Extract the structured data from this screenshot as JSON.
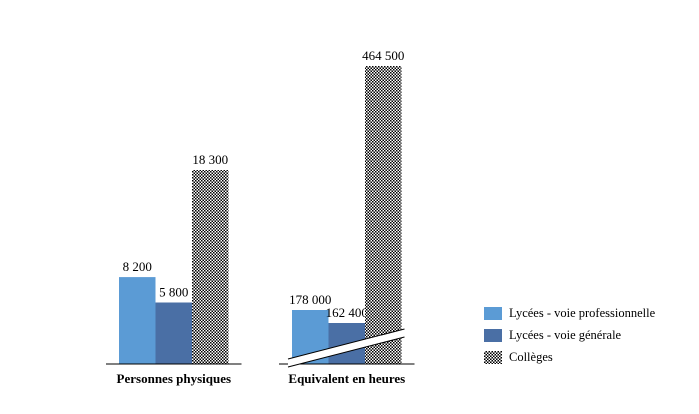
{
  "chart_data": {
    "type": "bar",
    "categories": [
      "Personnes physiques",
      "Equivalent en heures"
    ],
    "series": [
      {
        "name": "Lycées - voie professionnelle",
        "values": [
          8200,
          178000
        ],
        "labels": [
          "8 200",
          "178 000"
        ],
        "color": "#5b9bd5",
        "pattern": "solid"
      },
      {
        "name": "Lycées - voie générale",
        "values": [
          5800,
          162400
        ],
        "labels": [
          "5 800",
          "162 400"
        ],
        "color": "#4a6fa5",
        "pattern": "solid"
      },
      {
        "name": "Collèges",
        "values": [
          18300,
          464500
        ],
        "labels": [
          "18 300",
          "464 500"
        ],
        "color": "#000000",
        "pattern": "checkered"
      }
    ],
    "axis_break": {
      "category": "Equivalent en heures"
    },
    "legend_position": "bottom-right",
    "grid": false,
    "title": "",
    "xlabel": "",
    "ylabel": ""
  }
}
